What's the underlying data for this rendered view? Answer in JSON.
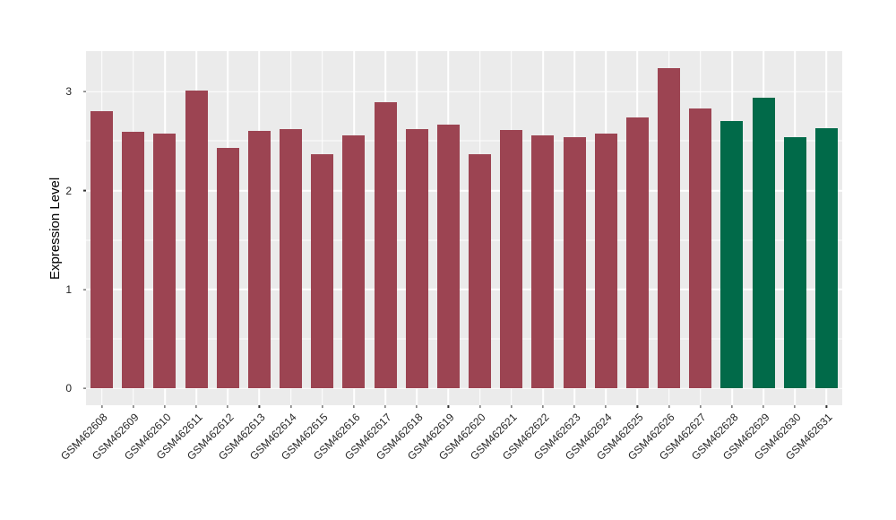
{
  "chart_data": {
    "type": "bar",
    "title": "",
    "xlabel": "",
    "ylabel": "Expression Level",
    "categories": [
      "GSM462608",
      "GSM462609",
      "GSM462610",
      "GSM462611",
      "GSM462612",
      "GSM462613",
      "GSM462614",
      "GSM462615",
      "GSM462616",
      "GSM462617",
      "GSM462618",
      "GSM462619",
      "GSM462620",
      "GSM462621",
      "GSM462622",
      "GSM462623",
      "GSM462624",
      "GSM462625",
      "GSM462626",
      "GSM462627",
      "GSM462628",
      "GSM462629",
      "GSM462630",
      "GSM462631"
    ],
    "values": [
      2.8,
      2.59,
      2.58,
      3.01,
      2.43,
      2.6,
      2.62,
      2.37,
      2.56,
      2.89,
      2.62,
      2.67,
      2.37,
      2.61,
      2.56,
      2.54,
      2.58,
      2.74,
      3.24,
      2.83,
      2.7,
      2.94,
      2.54,
      2.63
    ],
    "bar_color_groups": [
      "maroon",
      "maroon",
      "maroon",
      "maroon",
      "maroon",
      "maroon",
      "maroon",
      "maroon",
      "maroon",
      "maroon",
      "maroon",
      "maroon",
      "maroon",
      "maroon",
      "maroon",
      "maroon",
      "maroon",
      "maroon",
      "maroon",
      "maroon",
      "green",
      "green",
      "green",
      "green"
    ],
    "palette": {
      "maroon": "#9C4452",
      "green": "#016A49"
    },
    "yticks": [
      {
        "value": 0,
        "label": "0"
      },
      {
        "value": 1,
        "label": "1"
      },
      {
        "value": 2,
        "label": "2"
      },
      {
        "value": 3,
        "label": "3"
      }
    ],
    "minor_gridlines": [
      0.5,
      1.5,
      2.5
    ],
    "ylim": [
      -0.17,
      3.41
    ],
    "grid": true,
    "legend": "none",
    "bar_width_ratio": 0.71,
    "panel_color": "#EBEBEB",
    "gridline_color": "#FFFFFF"
  }
}
